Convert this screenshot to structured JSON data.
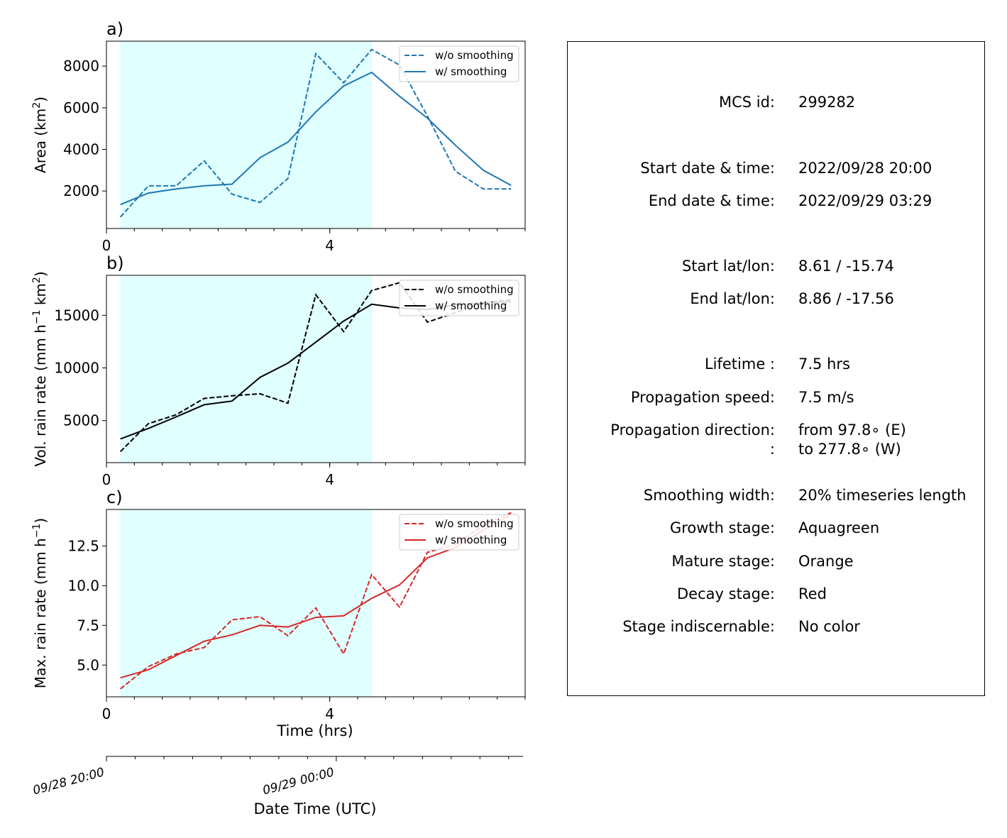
{
  "panels": [
    {
      "tag": "a)",
      "ylabel_main": "Area  (km",
      "ylabel_sup": "2",
      "ylabel_tail": ")",
      "ylim": [
        200,
        9200
      ],
      "yticks": [
        2000,
        4000,
        6000,
        8000
      ],
      "ytick_labels": [
        "2000",
        "4000",
        "6000",
        "8000"
      ],
      "color": "#1f77b4",
      "legend": [
        "w/o smoothing",
        "w/ smoothing"
      ]
    },
    {
      "tag": "b)",
      "ylabel_main": "Vol. rain rate (mm h",
      "ylabel_sup": "−1",
      "ylabel_mid": " km",
      "ylabel_sup2": "2",
      "ylabel_tail": ")",
      "ylim": [
        1000,
        18800
      ],
      "yticks": [
        5000,
        10000,
        15000
      ],
      "ytick_labels": [
        "5000",
        "10000",
        "15000"
      ],
      "color": "#000000",
      "legend": [
        "w/o smoothing",
        "w/ smoothing"
      ]
    },
    {
      "tag": "c)",
      "ylabel_main": "Max. rain rate  (mm h",
      "ylabel_sup": "−1",
      "ylabel_tail": ")",
      "ylim": [
        3.0,
        14.8
      ],
      "yticks": [
        5.0,
        7.5,
        10.0,
        12.5
      ],
      "ytick_labels": [
        "5.0",
        "7.5",
        "10.0",
        "12.5"
      ],
      "color": "#d62728",
      "legend": [
        "w/o smoothing",
        "w/ smoothing"
      ]
    }
  ],
  "x_axis": {
    "xlim": [
      0,
      7.5
    ],
    "xticks": [
      0,
      4
    ],
    "xtick_labels": [
      "0",
      "4"
    ],
    "xlabel": "Time (hrs)"
  },
  "datetime_axis": {
    "tick_labels": [
      "09/28 20:00",
      "09/29 00:00"
    ],
    "label": "Date Time (UTC)"
  },
  "colors": {
    "growth_shade": "#e0ffff",
    "area": "#1f77b4",
    "vol": "#000000",
    "max": "#d62728"
  },
  "chart_data": [
    {
      "type": "line",
      "title": "a)",
      "xlabel": "",
      "ylabel": "Area  (km2)",
      "xlim": [
        0,
        7.5
      ],
      "ylim": [
        200,
        9200
      ],
      "shaded_span": [
        0.25,
        4.75
      ],
      "series": [
        {
          "name": "w/o smoothing",
          "style": "dashed",
          "x": [
            0.25,
            0.75,
            1.25,
            1.75,
            2.25,
            2.75,
            3.25,
            3.75,
            4.25,
            4.75,
            5.25,
            5.75,
            6.25,
            6.75,
            7.25
          ],
          "values": [
            750,
            2250,
            2250,
            3450,
            1850,
            1450,
            2600,
            8600,
            7200,
            8800,
            8050,
            5600,
            2950,
            2100,
            2100
          ]
        },
        {
          "name": "w/ smoothing",
          "style": "solid",
          "x": [
            0.25,
            0.75,
            1.25,
            1.75,
            2.25,
            2.75,
            3.25,
            3.75,
            4.25,
            4.75,
            5.25,
            5.75,
            6.25,
            6.75,
            7.25
          ],
          "values": [
            1350,
            1900,
            2100,
            2250,
            2330,
            3600,
            4350,
            5800,
            7050,
            7700,
            6550,
            5500,
            4200,
            3000,
            2270
          ]
        }
      ]
    },
    {
      "type": "line",
      "title": "b)",
      "xlabel": "",
      "ylabel": "Vol. rain rate (mm h−1 km2)",
      "xlim": [
        0,
        7.5
      ],
      "ylim": [
        1000,
        18800
      ],
      "shaded_span": [
        0.25,
        4.75
      ],
      "series": [
        {
          "name": "w/o smoothing",
          "style": "dashed",
          "x": [
            0.25,
            0.75,
            1.25,
            1.75,
            2.25,
            2.75,
            3.25,
            3.75,
            4.25,
            4.75,
            5.25,
            5.75,
            6.25,
            6.75,
            7.25
          ],
          "values": [
            2050,
            4700,
            5550,
            7100,
            7350,
            7550,
            6650,
            16950,
            13450,
            17350,
            18100,
            14350,
            15250,
            16200,
            16500
          ]
        },
        {
          "name": "w/ smoothing",
          "style": "solid",
          "x": [
            0.25,
            0.75,
            1.25,
            1.75,
            2.25,
            2.75,
            3.25,
            3.75,
            4.25,
            4.75,
            5.25,
            5.75,
            6.25,
            6.75,
            7.25
          ],
          "values": [
            3250,
            4250,
            5350,
            6500,
            6850,
            9100,
            10450,
            12450,
            14450,
            16050,
            15700,
            15550,
            16000,
            16200,
            16300
          ]
        }
      ]
    },
    {
      "type": "line",
      "title": "c)",
      "xlabel": "Time (hrs)",
      "ylabel": "Max. rain rate  (mm h−1)",
      "xlim": [
        0,
        7.5
      ],
      "ylim": [
        3.0,
        14.8
      ],
      "shaded_span": [
        0.25,
        4.75
      ],
      "series": [
        {
          "name": "w/o smoothing",
          "style": "dashed",
          "x": [
            0.25,
            0.75,
            1.25,
            1.75,
            2.25,
            2.75,
            3.25,
            3.75,
            4.25,
            4.75,
            5.25,
            5.75,
            6.25,
            6.75,
            7.25
          ],
          "values": [
            3.5,
            4.9,
            5.7,
            6.1,
            7.85,
            8.05,
            6.85,
            8.6,
            5.7,
            10.7,
            8.65,
            12.1,
            12.6,
            13.8,
            14.6
          ]
        },
        {
          "name": "w/ smoothing",
          "style": "solid",
          "x": [
            0.25,
            0.75,
            1.25,
            1.75,
            2.25,
            2.75,
            3.25,
            3.75,
            4.25,
            4.75,
            5.25,
            5.75,
            6.25,
            6.75,
            7.25
          ],
          "values": [
            4.2,
            4.7,
            5.6,
            6.5,
            6.9,
            7.5,
            7.4,
            8.0,
            8.1,
            9.2,
            10.05,
            11.75,
            12.4,
            13.5,
            14.5
          ]
        }
      ]
    }
  ],
  "info": [
    {
      "label": "MCS id:",
      "value": "299282"
    },
    {
      "label": "Start date & time:",
      "value": "2022/09/28 20:00"
    },
    {
      "label": "End date & time:",
      "value": "2022/09/29 03:29"
    },
    {
      "label": "Start lat/lon:",
      "value": "8.61 / -15.74"
    },
    {
      "label": "End lat/lon:",
      "value": "8.86 / -17.56"
    },
    {
      "label": "Lifetime :",
      "value": "7.5 hrs"
    },
    {
      "label": "Propagation speed:",
      "value": "7.5 m/s"
    },
    {
      "label": "Propagation direction:",
      "value": "from  97.8∘ (E)"
    },
    {
      "label": ":",
      "value": "to   277.8∘ (W)"
    },
    {
      "label": "Smoothing width:",
      "value": "20% timeseries length"
    },
    {
      "label": "Growth stage:",
      "value": "Aquagreen"
    },
    {
      "label": "Mature stage:",
      "value": "Orange"
    },
    {
      "label": "Decay stage:",
      "value": "Red"
    },
    {
      "label": "Stage indiscernable:",
      "value": "No color"
    }
  ]
}
